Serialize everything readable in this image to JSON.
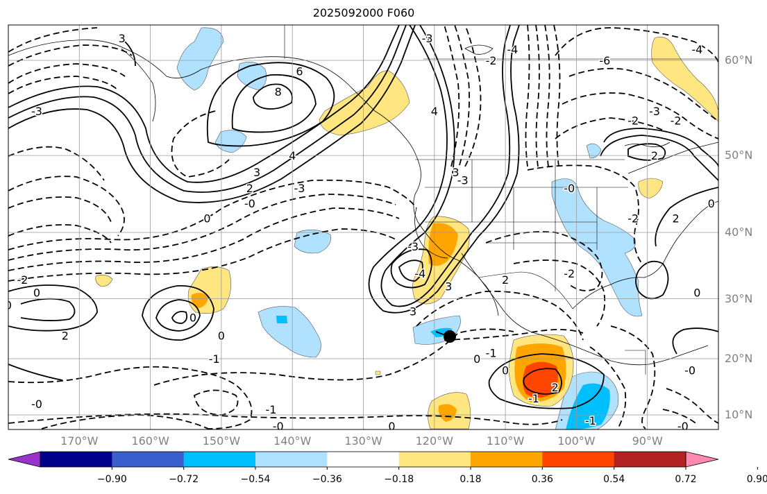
{
  "title": "2025092000 F060",
  "lat_labels": [
    {
      "label": "60°N",
      "lat": 60
    },
    {
      "label": "50°N",
      "lat": 50
    },
    {
      "label": "40°N",
      "lat": 40
    },
    {
      "label": "30°N",
      "lat": 30
    },
    {
      "label": "20°N",
      "lat": 20
    },
    {
      "label": "10°N",
      "lat": 10
    }
  ],
  "lon_labels": [
    {
      "label": "170°W",
      "lon": -170
    },
    {
      "label": "160°W",
      "lon": -160
    },
    {
      "label": "150°W",
      "lon": -150
    },
    {
      "label": "140°W",
      "lon": -140
    },
    {
      "label": "130°W",
      "lon": -130
    },
    {
      "label": "120°W",
      "lon": -120
    },
    {
      "label": "110°W",
      "lon": -110
    },
    {
      "label": "100°W",
      "lon": -100
    },
    {
      "label": "90°W",
      "lon": -90
    }
  ],
  "colorbar": {
    "ticks": [
      "−0.90",
      "−0.72",
      "−0.54",
      "−0.36",
      "−0.18",
      "0.18",
      "0.36",
      "0.54",
      "0.72",
      "0.90"
    ],
    "colors": [
      "#9932cc",
      "#00008b",
      "#3a5fcd",
      "#00bfff",
      "#b0e2ff",
      "#ffffff",
      "#ffe680",
      "#ffa500",
      "#ff4500",
      "#b22222",
      "#ff88b0"
    ]
  },
  "contour_labels": [
    {
      "text": "3",
      "lon": -164,
      "lat": 62
    },
    {
      "text": "6",
      "lon": -139,
      "lat": 59
    },
    {
      "text": "8",
      "lon": -142,
      "lat": 57
    },
    {
      "text": "4",
      "lon": -140,
      "lat": 50
    },
    {
      "text": "3",
      "lon": -145,
      "lat": 48
    },
    {
      "text": "2",
      "lon": -146,
      "lat": 46
    },
    {
      "text": "-3",
      "lon": -139,
      "lat": 46
    },
    {
      "text": "-0",
      "lon": -146,
      "lat": 44
    },
    {
      "text": "0",
      "lon": -152,
      "lat": 42
    },
    {
      "text": "-3",
      "lon": -176,
      "lat": 55
    },
    {
      "text": "-3",
      "lon": -121,
      "lat": 62
    },
    {
      "text": "-3",
      "lon": -116,
      "lat": 47
    },
    {
      "text": "-4",
      "lon": -109,
      "lat": 61
    },
    {
      "text": "-6",
      "lon": -96,
      "lat": 60
    },
    {
      "text": "-2",
      "lon": -112,
      "lat": 60
    },
    {
      "text": "-3",
      "lon": -89,
      "lat": 55
    },
    {
      "text": "-2",
      "lon": -92,
      "lat": 54
    },
    {
      "text": "-0",
      "lon": -101,
      "lat": 46
    },
    {
      "text": "2",
      "lon": -89,
      "lat": 50
    },
    {
      "text": "-2",
      "lon": -86,
      "lat": 54
    },
    {
      "text": "-4",
      "lon": -83,
      "lat": 61
    },
    {
      "text": "-2",
      "lon": -92,
      "lat": 42
    },
    {
      "text": "2",
      "lon": -86,
      "lat": 42
    },
    {
      "text": "0",
      "lon": -81,
      "lat": 44
    },
    {
      "text": "-2",
      "lon": -101,
      "lat": 34
    },
    {
      "text": "2",
      "lon": -110,
      "lat": 33
    },
    {
      "text": "-2",
      "lon": -178,
      "lat": 33
    },
    {
      "text": "0",
      "lon": -176,
      "lat": 31
    },
    {
      "text": "0",
      "lon": -180,
      "lat": 29
    },
    {
      "text": "2",
      "lon": -172,
      "lat": 24
    },
    {
      "text": "0",
      "lon": -154,
      "lat": 27
    },
    {
      "text": "0",
      "lon": -150,
      "lat": 24
    },
    {
      "text": "-1",
      "lon": -151,
      "lat": 20
    },
    {
      "text": "-0",
      "lon": -176,
      "lat": 12
    },
    {
      "text": "-1",
      "lon": -143,
      "lat": 11
    },
    {
      "text": "-0",
      "lon": -142,
      "lat": 8
    },
    {
      "text": "0",
      "lon": -126,
      "lat": 8
    },
    {
      "text": "0",
      "lon": -114,
      "lat": 20
    },
    {
      "text": "-1",
      "lon": -112,
      "lat": 21
    },
    {
      "text": "0",
      "lon": -110,
      "lat": 18
    },
    {
      "text": "2",
      "lon": -103,
      "lat": 15
    },
    {
      "text": "-1",
      "lon": -106,
      "lat": 13
    },
    {
      "text": "-1",
      "lon": -98,
      "lat": 9
    },
    {
      "text": "-0",
      "lon": -85,
      "lat": 8
    },
    {
      "text": "-0",
      "lon": -84,
      "lat": 18
    },
    {
      "text": "0",
      "lon": -83,
      "lat": 31
    },
    {
      "text": "-3",
      "lon": -123,
      "lat": 38
    },
    {
      "text": "-4",
      "lon": -122,
      "lat": 34
    },
    {
      "text": "3",
      "lon": -123,
      "lat": 28
    },
    {
      "text": "3",
      "lon": -118,
      "lat": 32
    },
    {
      "text": "3",
      "lon": -117,
      "lat": 48
    },
    {
      "text": "4",
      "lon": -120,
      "lat": 55
    }
  ]
}
